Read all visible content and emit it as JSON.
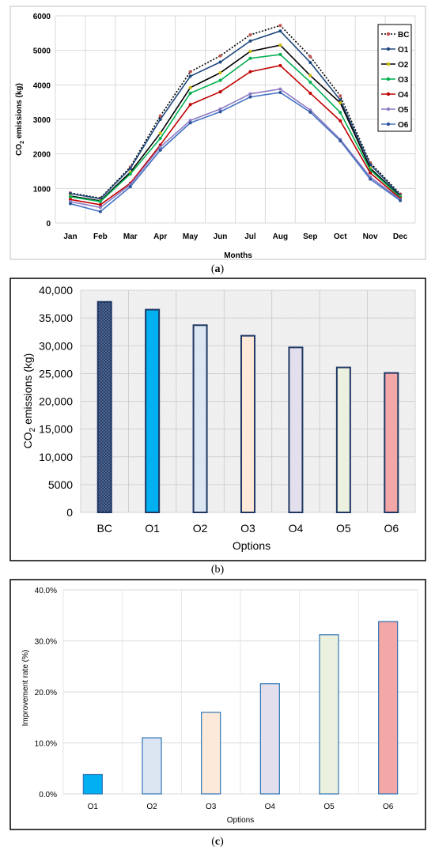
{
  "chart_data": [
    {
      "type": "line",
      "xlabel": "Months",
      "ylabel_main": "CO",
      "ylabel_sub": "2",
      "ylabel_rest": " emissions (kg)",
      "ylim": [
        0,
        6000
      ],
      "y_ticks": [
        "0",
        "1000",
        "2000",
        "3000",
        "4000",
        "5000",
        "6000"
      ],
      "categories": [
        "Jan",
        "Feb",
        "Mar",
        "Apr",
        "May",
        "Jun",
        "Jul",
        "Aug",
        "Sep",
        "Oct",
        "Nov",
        "Dec"
      ],
      "legend_position": "top-right",
      "grid": true,
      "caption_open": "(",
      "caption_letter": "a",
      "caption_close": ")",
      "series": [
        {
          "name": "BC",
          "color": "#000000",
          "marker": "#c0504d",
          "dash": "2,2",
          "values": [
            870,
            720,
            1620,
            3100,
            4380,
            4840,
            5450,
            5720,
            4820,
            3680,
            1740,
            840
          ]
        },
        {
          "name": "O1",
          "color": "#1f497d",
          "marker": "#1f497d",
          "dash": "",
          "values": [
            850,
            700,
            1580,
            3000,
            4250,
            4660,
            5270,
            5560,
            4650,
            3560,
            1690,
            810
          ]
        },
        {
          "name": "O2",
          "color": "#000000",
          "marker": "#c9b600",
          "dash": "",
          "values": [
            780,
            640,
            1470,
            2600,
            3920,
            4350,
            4970,
            5150,
            4270,
            3480,
            1590,
            770
          ]
        },
        {
          "name": "O3",
          "color": "#00b050",
          "marker": "#00b050",
          "dash": "",
          "values": [
            760,
            620,
            1420,
            2450,
            3760,
            4130,
            4770,
            4880,
            4080,
            3200,
            1540,
            750
          ]
        },
        {
          "name": "O4",
          "color": "#c00000",
          "marker": "#c00000",
          "dash": "",
          "values": [
            680,
            530,
            1150,
            2260,
            3430,
            3800,
            4380,
            4560,
            3760,
            2960,
            1450,
            710
          ]
        },
        {
          "name": "O5",
          "color": "#8e7cc3",
          "marker": "#8e7cc3",
          "dash": "",
          "values": [
            620,
            450,
            1110,
            2200,
            2970,
            3300,
            3740,
            3880,
            3270,
            2420,
            1330,
            680
          ]
        },
        {
          "name": "O6",
          "color": "#4472c4",
          "marker": "#2e5597",
          "dash": "",
          "values": [
            560,
            330,
            1050,
            2110,
            2900,
            3220,
            3650,
            3780,
            3210,
            2380,
            1270,
            650
          ]
        }
      ]
    },
    {
      "type": "bar",
      "xlabel": "Options",
      "ylabel_main": "CO",
      "ylabel_sub": "2",
      "ylabel_rest": " emissions (kg)",
      "ylim": [
        0,
        40000
      ],
      "y_ticks": [
        "0",
        "5000",
        "10,000",
        "15,000",
        "20,000",
        "25,000",
        "30,000",
        "35,000",
        "40,000"
      ],
      "categories": [
        "BC",
        "O1",
        "O2",
        "O3",
        "O4",
        "O5",
        "O6"
      ],
      "values": [
        37900,
        36500,
        33700,
        31800,
        29700,
        26100,
        25100
      ],
      "fills": [
        "#5b6f96",
        "#00b0f0",
        "#dce6f2",
        "#fde9d9",
        "#e4dfec",
        "#ebf1de",
        "#f4a7a7"
      ],
      "caption_open": "(",
      "caption_letter": "b",
      "caption_close": ")"
    },
    {
      "type": "bar",
      "xlabel": "Options",
      "ylabel": "Improvement rate (%)",
      "ylim": [
        0,
        40
      ],
      "y_ticks": [
        "0.0%",
        "10.0%",
        "20.0%",
        "30.0%",
        "40.0%"
      ],
      "categories": [
        "O1",
        "O2",
        "O3",
        "O4",
        "O5",
        "O6"
      ],
      "values": [
        3.8,
        11.0,
        16.0,
        21.6,
        31.2,
        33.8
      ],
      "fills": [
        "#00b0f0",
        "#dce6f2",
        "#fde9d9",
        "#e4dfec",
        "#ebf1de",
        "#f4a7a7"
      ],
      "grid": true,
      "caption_open": "(",
      "caption_letter": "c",
      "caption_close": ")"
    }
  ]
}
